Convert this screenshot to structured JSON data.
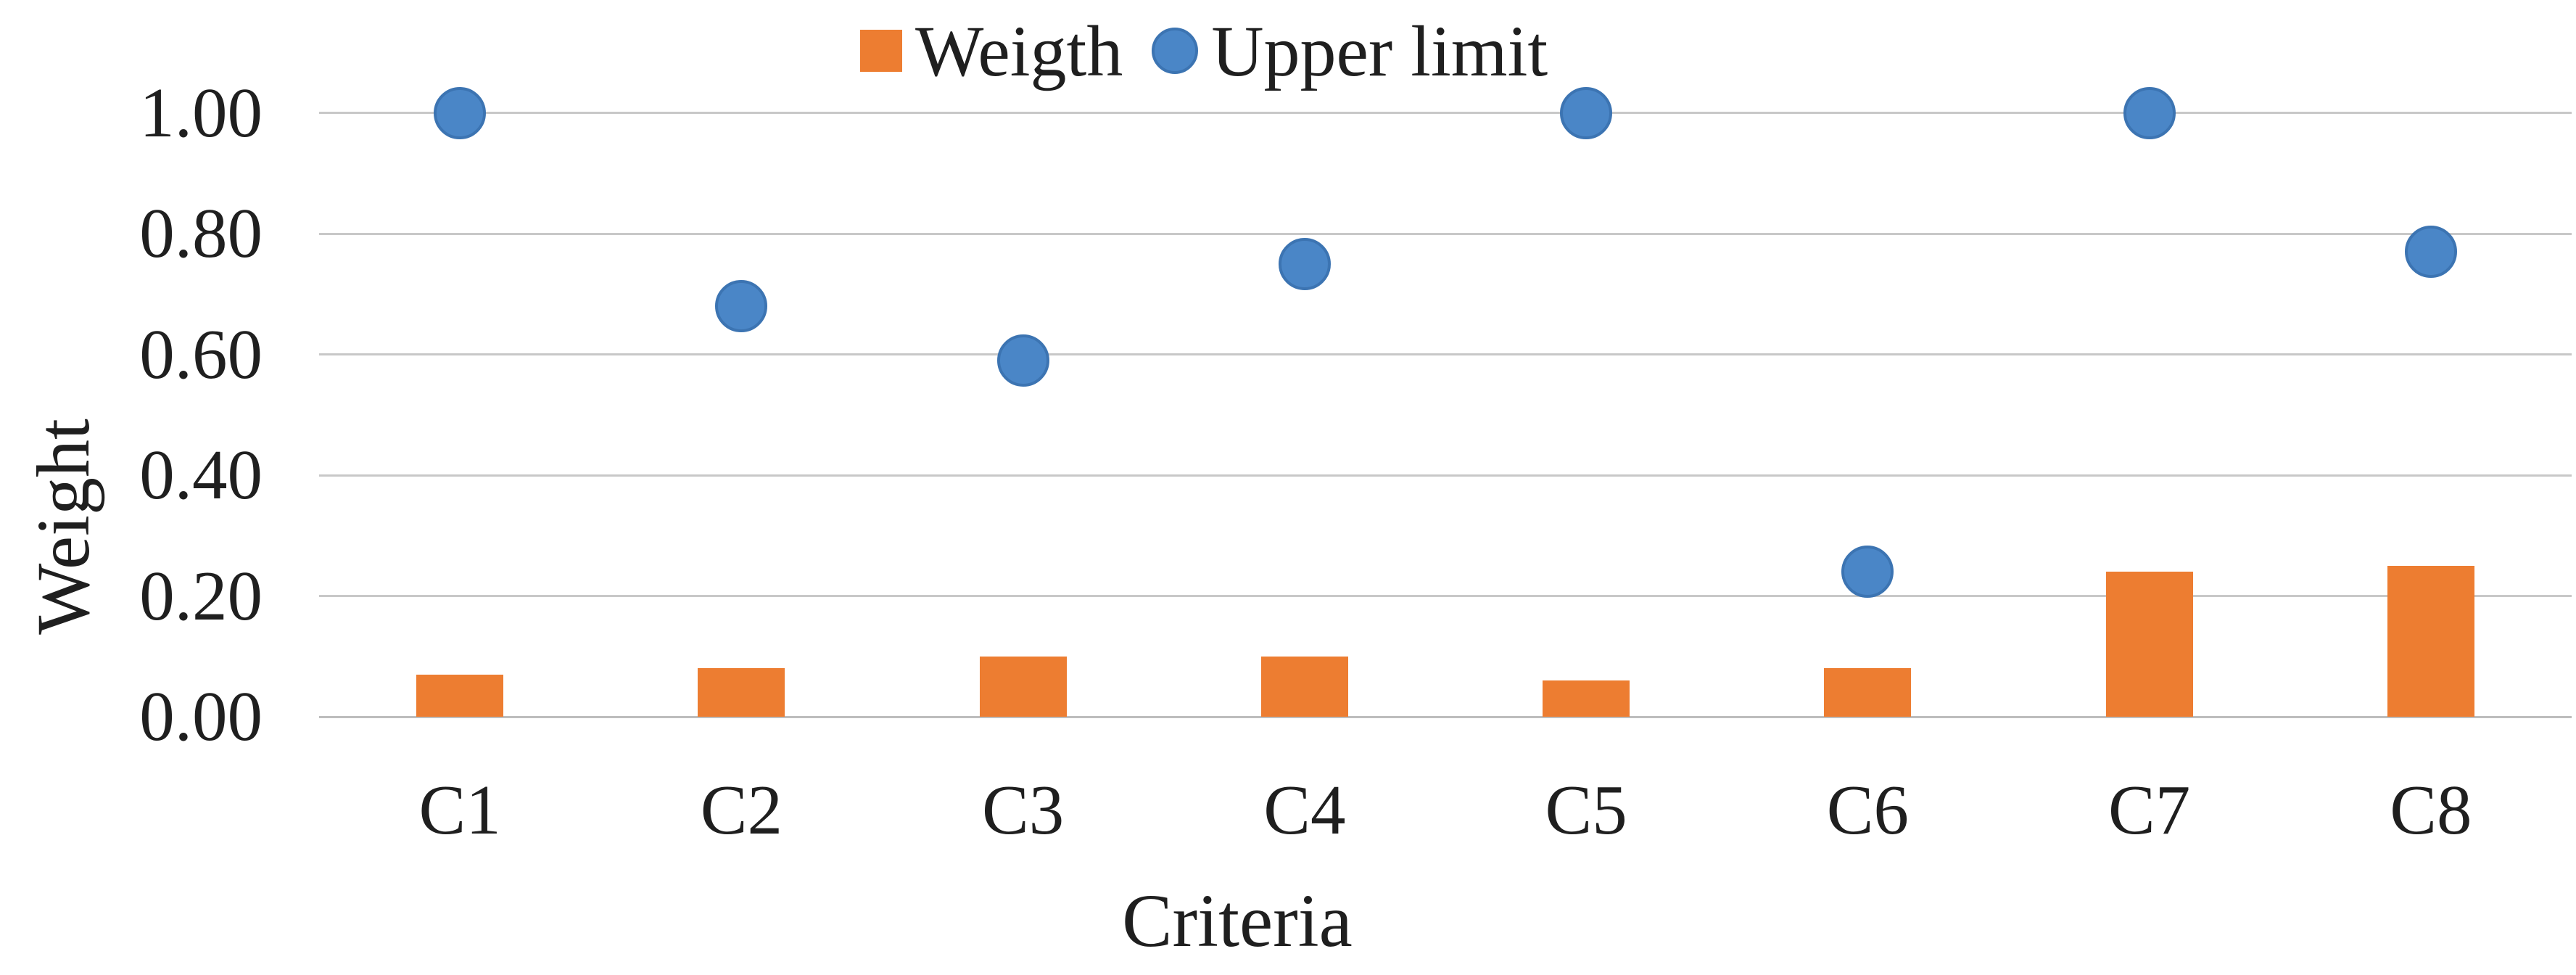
{
  "chart_data": {
    "type": "bar",
    "subtype": "combo-bar-scatter",
    "categories": [
      "C1",
      "C2",
      "C3",
      "C4",
      "C5",
      "C6",
      "C7",
      "C8"
    ],
    "series": [
      {
        "name": "Weigth",
        "type": "bar",
        "color": "#ED7D31",
        "values": [
          0.07,
          0.08,
          0.1,
          0.1,
          0.06,
          0.08,
          0.24,
          0.25
        ]
      },
      {
        "name": "Upper limit",
        "type": "scatter",
        "color": "#4A86C7",
        "edge_color": "#3C74B2",
        "values": [
          1.0,
          0.68,
          0.59,
          0.75,
          1.0,
          0.24,
          1.0,
          0.77
        ]
      }
    ],
    "title": "",
    "xlabel": "Criteria",
    "ylabel": "Weight",
    "ylim": [
      0,
      1.0
    ],
    "yticks": [
      0.0,
      0.2,
      0.4,
      0.6,
      0.8,
      1.0
    ],
    "ytick_labels": [
      "0.00",
      "0.20",
      "0.40",
      "0.60",
      "0.80",
      "1.00"
    ],
    "grid": "horizontal",
    "gridline_color": "#C8C8C8",
    "baseline_color": "#BDBDBD",
    "legend_position": "top",
    "text_color": "#1F1F1F",
    "background_color": "#FFFFFF"
  }
}
